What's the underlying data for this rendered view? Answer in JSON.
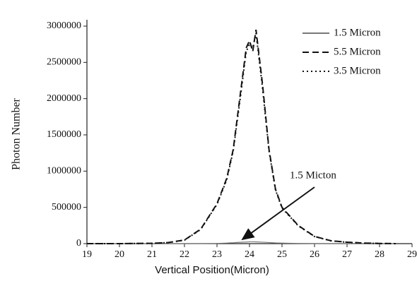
{
  "chart_data": {
    "type": "line",
    "x_label": "Vertical Position(Micron)",
    "y_label": "Photon Number",
    "annotation": "1.5 Micton",
    "x": [
      19,
      20,
      21,
      21.5,
      22,
      22.5,
      23,
      23.3,
      23.5,
      23.7,
      23.9,
      24,
      24.1,
      24.2,
      24.4,
      24.6,
      24.8,
      25,
      25.5,
      26,
      26.5,
      27,
      27.5,
      28,
      28.5
    ],
    "series": [
      {
        "name": "1.5 Micron",
        "color": "#777777",
        "dash": "solid",
        "values": [
          0,
          0,
          0,
          0,
          0,
          1000,
          3000,
          8000,
          12000,
          18000,
          22000,
          25000,
          25000,
          24000,
          20000,
          15000,
          10000,
          7000,
          3000,
          1000,
          0,
          0,
          0,
          0,
          0
        ]
      },
      {
        "name": "5.5 Micron",
        "color": "#111111",
        "dash": "dashed",
        "values": [
          0,
          0,
          5000,
          15000,
          50000,
          200000,
          550000,
          900000,
          1300000,
          2000000,
          2700000,
          2800000,
          2650000,
          2950000,
          2200000,
          1300000,
          750000,
          500000,
          250000,
          100000,
          40000,
          20000,
          8000,
          3000,
          0
        ]
      },
      {
        "name": "3.5 Micron",
        "color": "#111111",
        "dash": "dotted",
        "values": [
          0,
          0,
          5000,
          14000,
          48000,
          195000,
          540000,
          880000,
          1280000,
          1950000,
          2650000,
          2750000,
          2700000,
          2900000,
          2150000,
          1280000,
          740000,
          490000,
          245000,
          98000,
          39000,
          19000,
          7000,
          2000,
          0
        ]
      }
    ],
    "xlim": [
      19,
      29
    ],
    "xticks": [
      19,
      20,
      21,
      22,
      23,
      24,
      25,
      26,
      27,
      28,
      29
    ],
    "ylim": [
      0,
      3000000
    ],
    "yticks": [
      0,
      500000,
      1000000,
      1500000,
      2000000,
      2500000,
      3000000
    ]
  }
}
